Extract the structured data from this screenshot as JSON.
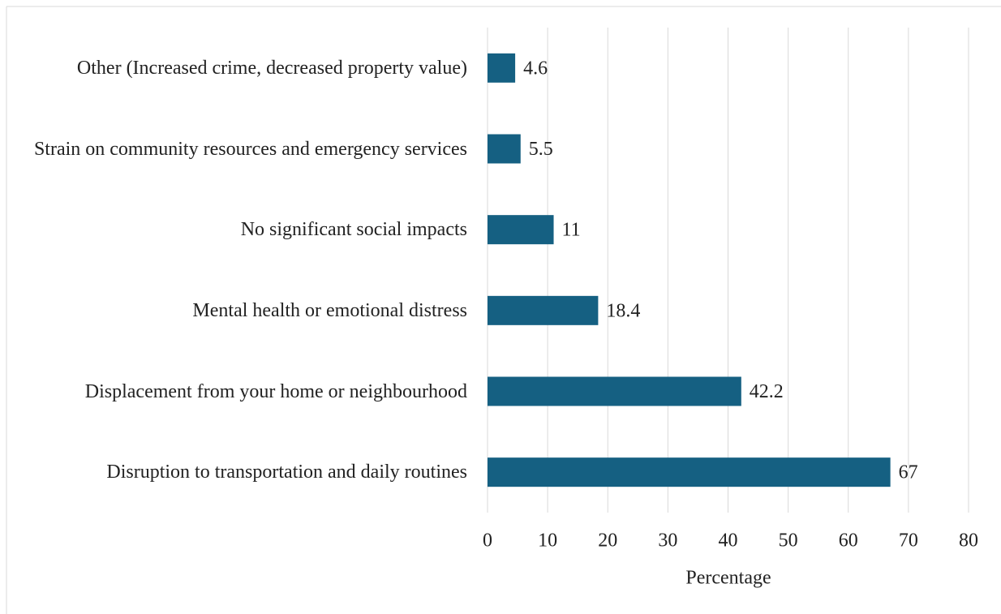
{
  "chart_data": {
    "type": "bar",
    "orientation": "horizontal",
    "x_label": "Percentage",
    "categories": [
      "Other (Increased crime, decreased property value)",
      "Strain on community resources and emergency services",
      "No significant social impacts",
      "Mental health or emotional distress",
      "Displacement from your home or neighbourhood",
      "Disruption to transportation and daily routines"
    ],
    "values": [
      4.6,
      5.5,
      11,
      18.4,
      42.2,
      67
    ],
    "color": "#156082",
    "xlim": [
      0,
      80
    ],
    "xticks": [
      0,
      10,
      20,
      30,
      40,
      50,
      60,
      70,
      80
    ],
    "grid": true
  }
}
